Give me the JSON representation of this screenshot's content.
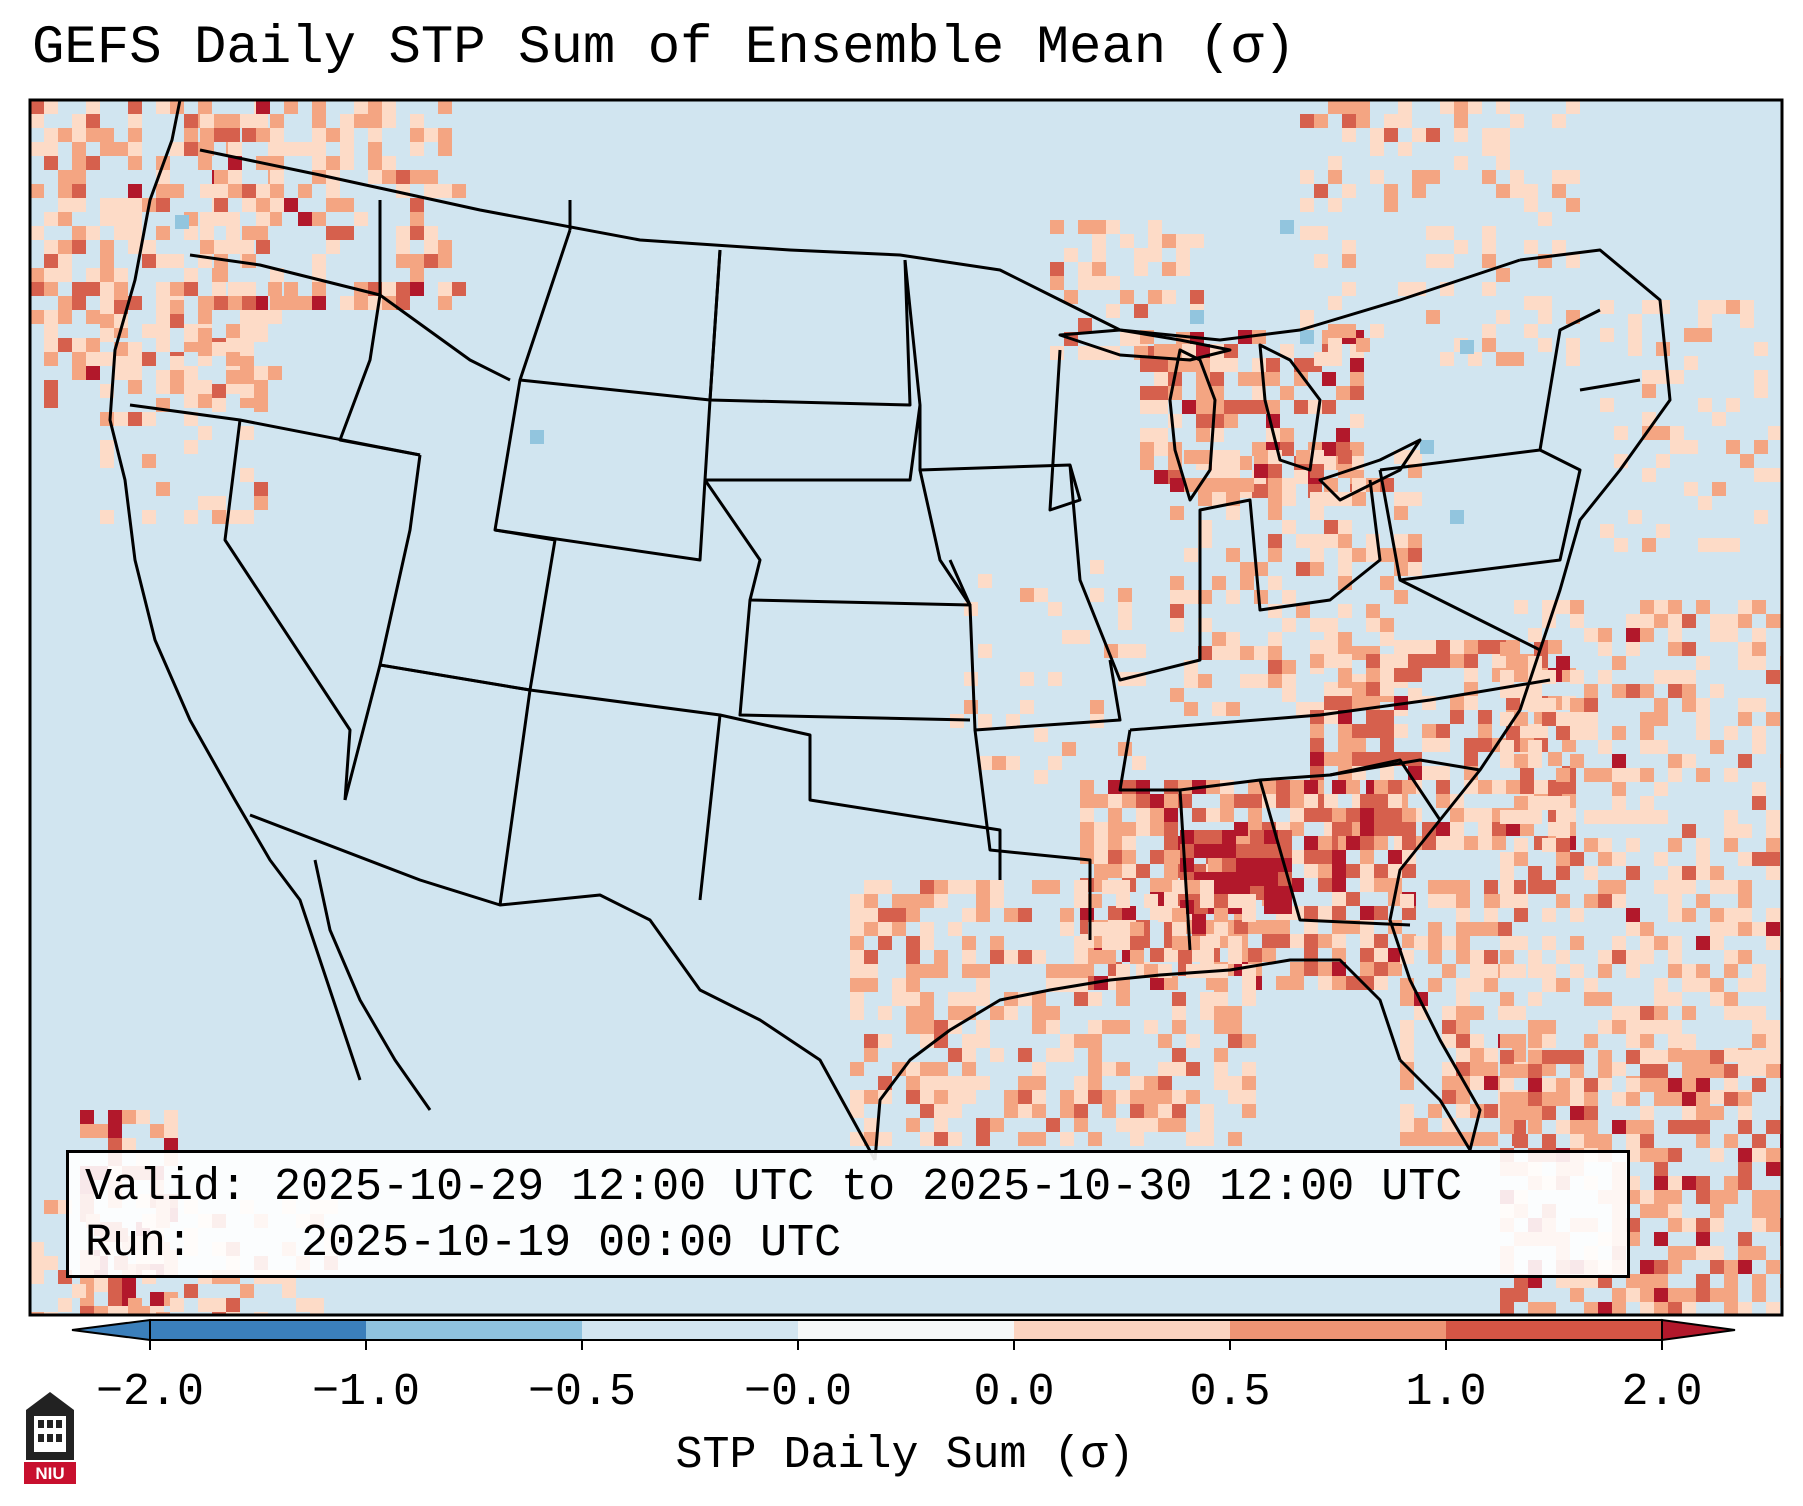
{
  "title": "GEFS Daily STP Sum of Ensemble Mean (σ)",
  "info": {
    "valid_label": "Valid:",
    "valid_value": "2025-10-29 12:00 UTC to 2025-10-30 12:00 UTC",
    "run_label": "Run:",
    "run_value": "2025-10-19 00:00 UTC"
  },
  "colorbar": {
    "label": "STP Daily Sum (σ)",
    "ticks": [
      "−2.0",
      "−1.0",
      "−0.5",
      "−0.0",
      "0.0",
      "0.5",
      "1.0",
      "2.0"
    ],
    "colors": [
      "#3b7fbb",
      "#8fc2de",
      "#d3e5f0",
      "#f6f7f7",
      "#fbd3c0",
      "#ee9475",
      "#d45545",
      "#b2182b"
    ],
    "extend": "both"
  },
  "map_colors": {
    "background": "#d1e5f0",
    "light_red": "#fddbc7",
    "mid_red": "#f4a582",
    "strong_red": "#d6604d",
    "dark_red": "#b2182b",
    "light_blue": "#92c5de"
  },
  "logo": {
    "text": "NIU"
  }
}
